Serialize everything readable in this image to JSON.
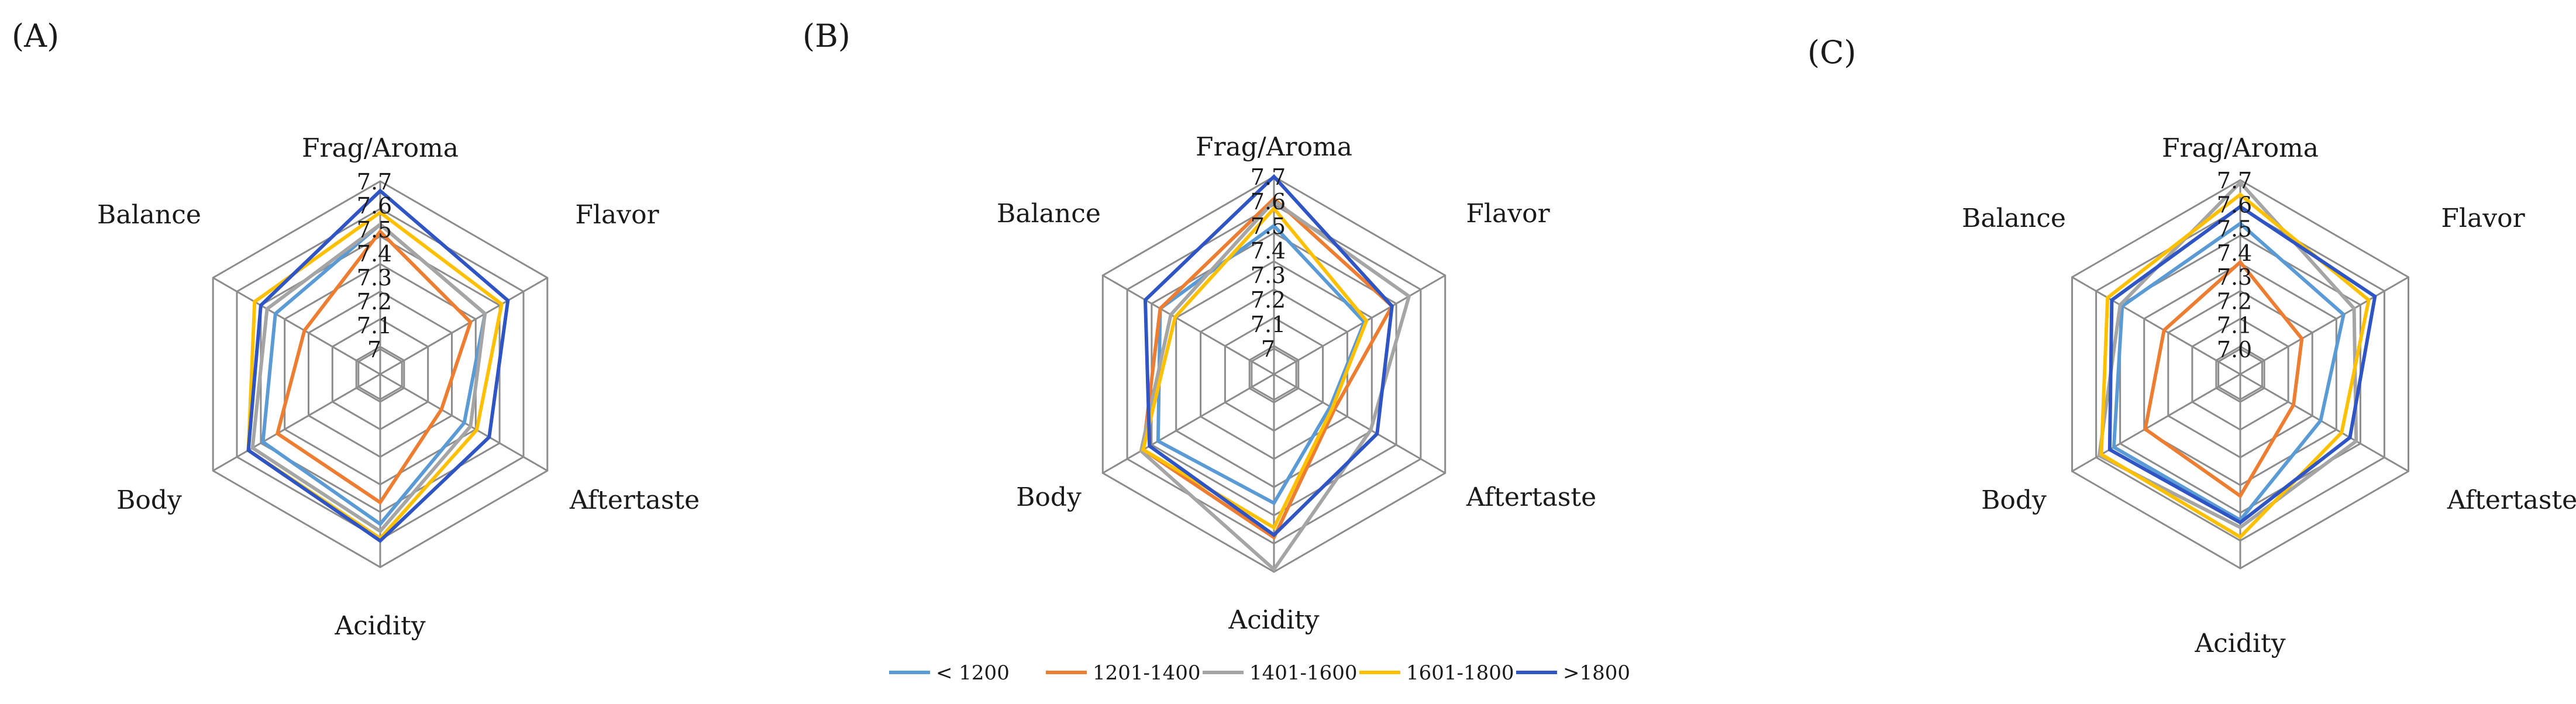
{
  "chart_data": [
    {
      "type": "radar",
      "panel_label": "(A)",
      "axes": [
        "Frag/Aroma",
        "Flavor",
        "Aftertaste",
        "Acidity",
        "Body",
        "Balance"
      ],
      "ticks": [
        "7",
        "7.1",
        "7.2",
        "7.3",
        "7.4",
        "7.5",
        "7.6",
        "7.7"
      ],
      "range": [
        7.0,
        7.7
      ],
      "series": [
        {
          "name": "< 1200",
          "color": "#5b9bd5",
          "values": [
            7.52,
            7.4,
            7.3,
            7.52,
            7.46,
            7.4
          ]
        },
        {
          "name": "1201-1400",
          "color": "#ed7d31",
          "values": [
            7.49,
            7.33,
            7.19,
            7.43,
            7.39,
            7.26
          ]
        },
        {
          "name": "1401-1600",
          "color": "#a5a5a5",
          "values": [
            7.52,
            7.4,
            7.33,
            7.55,
            7.51,
            7.44
          ]
        },
        {
          "name": "1601-1800",
          "color": "#ffc000",
          "values": [
            7.57,
            7.48,
            7.36,
            7.58,
            7.53,
            7.5
          ]
        },
        {
          "name": ">1800",
          "color": "#2f55c4",
          "values": [
            7.66,
            7.51,
            7.42,
            7.59,
            7.53,
            7.47
          ]
        }
      ]
    },
    {
      "type": "radar",
      "panel_label": "(B)",
      "axes": [
        "Frag/Aroma",
        "Flavor",
        "Aftertaste",
        "Acidity",
        "Body",
        "Balance"
      ],
      "ticks": [
        "7.7",
        "7.6",
        "7.5",
        "7.4",
        "7.3",
        "7.2",
        "7.1",
        "7"
      ],
      "range": [
        7.0,
        7.7
      ],
      "series": [
        {
          "name": "< 1200",
          "color": "#5b9bd5",
          "values": [
            7.5,
            7.32,
            7.16,
            7.42,
            7.44,
            7.43
          ]
        },
        {
          "name": "1201-1400",
          "color": "#ed7d31",
          "values": [
            7.61,
            7.45,
            7.18,
            7.56,
            7.51,
            7.43
          ]
        },
        {
          "name": "1401-1600",
          "color": "#a5a5a5",
          "values": [
            7.6,
            7.53,
            7.35,
            7.69,
            7.52,
            7.38
          ]
        },
        {
          "name": "1601-1800",
          "color": "#ffc000",
          "values": [
            7.57,
            7.33,
            7.17,
            7.52,
            7.51,
            7.36
          ]
        },
        {
          "name": ">1800",
          "color": "#2f55c4",
          "values": [
            7.7,
            7.45,
            7.38,
            7.55,
            7.48,
            7.5
          ]
        }
      ]
    },
    {
      "type": "radar",
      "panel_label": "(C)",
      "axes": [
        "Frag/Aroma",
        "Flavor",
        "Aftertaste",
        "Acidity",
        "Body",
        "Balance"
      ],
      "ticks": [
        "7.0",
        "7.1",
        "7.2",
        "7.3",
        "7.4",
        "7.5",
        "7.6",
        "7.7"
      ],
      "range": [
        7.0,
        7.7
      ],
      "series": [
        {
          "name": "< 1200",
          "color": "#5b9bd5",
          "values": [
            7.52,
            7.39,
            7.28,
            7.5,
            7.5,
            7.46
          ]
        },
        {
          "name": "1201-1400",
          "color": "#ed7d31",
          "values": [
            7.36,
            7.19,
            7.15,
            7.4,
            7.35,
            7.26
          ]
        },
        {
          "name": "1401-1600",
          "color": "#a5a5a5",
          "values": [
            7.69,
            7.44,
            7.45,
            7.53,
            7.57,
            7.47
          ]
        },
        {
          "name": "1601-1800",
          "color": "#ffc000",
          "values": [
            7.64,
            7.51,
            7.38,
            7.57,
            7.56,
            7.53
          ]
        },
        {
          "name": ">1800",
          "color": "#2f55c4",
          "values": [
            7.59,
            7.54,
            7.42,
            7.51,
            7.52,
            7.51
          ]
        }
      ]
    }
  ],
  "legend": {
    "items": [
      {
        "label": "< 1200",
        "color": "#5b9bd5"
      },
      {
        "label": "1201-1400",
        "color": "#ed7d31"
      },
      {
        "label": "1401-1600",
        "color": "#a5a5a5"
      },
      {
        "label": "1601-1800",
        "color": "#ffc000"
      },
      {
        "label": ">1800",
        "color": "#2f55c4"
      }
    ]
  }
}
